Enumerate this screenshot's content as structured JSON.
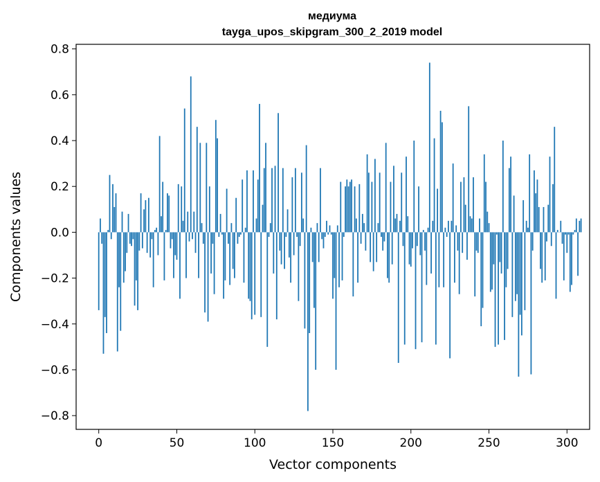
{
  "chart_data": {
    "type": "bar",
    "title_line1": "медиума",
    "title_line2": "tayga_upos_skipgram_300_2_2019 model",
    "xlabel": "Vector components",
    "ylabel": "Components values",
    "xlim": [
      -14.5,
      314.5
    ],
    "ylim": [
      -0.86,
      0.82
    ],
    "xticks": [
      0,
      50,
      100,
      150,
      200,
      250,
      300
    ],
    "xtick_labels": [
      "0",
      "50",
      "100",
      "150",
      "200",
      "250",
      "300"
    ],
    "yticks": [
      -0.8,
      -0.6,
      -0.4,
      -0.2,
      0.0,
      0.2,
      0.4,
      0.6,
      0.8
    ],
    "ytick_labels": [
      "−0.8",
      "−0.6",
      "−0.4",
      "−0.2",
      "0.0",
      "0.2",
      "0.4",
      "0.6",
      "0.8"
    ],
    "bar_color": "#1f77b4",
    "bar_width": 0.8,
    "values": [
      -0.34,
      0.06,
      -0.05,
      -0.53,
      -0.37,
      -0.44,
      0.01,
      0.25,
      -0.03,
      0.21,
      0.11,
      0.17,
      -0.52,
      -0.24,
      -0.43,
      0.09,
      -0.22,
      -0.17,
      -0.09,
      0.08,
      -0.05,
      -0.06,
      -0.03,
      -0.32,
      -0.21,
      -0.34,
      -0.08,
      0.17,
      -0.07,
      0.1,
      0.14,
      -0.09,
      0.15,
      -0.11,
      -0.03,
      -0.24,
      0.01,
      0.02,
      -0.1,
      0.42,
      0.07,
      0.22,
      -0.21,
      0.01,
      0.17,
      0.16,
      -0.07,
      -0.03,
      -0.2,
      -0.1,
      -0.12,
      0.21,
      -0.29,
      0.2,
      0.05,
      0.54,
      -0.2,
      0.09,
      -0.04,
      0.68,
      -0.03,
      0.09,
      -0.09,
      0.46,
      -0.2,
      0.39,
      0.04,
      -0.05,
      -0.35,
      0.39,
      -0.39,
      0.2,
      -0.18,
      -0.05,
      -0.27,
      0.49,
      0.41,
      -0.02,
      0.08,
      -0.01,
      -0.29,
      -0.21,
      0.19,
      -0.05,
      -0.23,
      0.04,
      -0.16,
      -0.2,
      0.15,
      -0.05,
      -0.02,
      -0.01,
      0.23,
      -0.22,
      0.02,
      0.27,
      -0.29,
      -0.3,
      -0.38,
      0.27,
      -0.36,
      0.06,
      0.23,
      0.56,
      -0.37,
      0.12,
      0.28,
      0.39,
      -0.5,
      -0.02,
      0.04,
      0.28,
      -0.18,
      0.29,
      -0.38,
      0.52,
      -0.08,
      -0.14,
      0.28,
      -0.16,
      -0.02,
      0.1,
      -0.11,
      -0.22,
      0.24,
      -0.1,
      0.28,
      -0.02,
      -0.3,
      -0.06,
      0.26,
      0.06,
      -0.42,
      0.38,
      -0.78,
      -0.44,
      0.02,
      -0.13,
      -0.33,
      -0.6,
      0.04,
      -0.13,
      0.28,
      -0.03,
      -0.07,
      -0.02,
      0.05,
      -0.01,
      0.03,
      -0.01,
      -0.29,
      -0.2,
      -0.6,
      0.03,
      -0.24,
      0.22,
      -0.21,
      -0.02,
      0.2,
      0.23,
      0.2,
      0.22,
      0.23,
      -0.28,
      0.2,
      0.06,
      -0.22,
      0.21,
      -0.05,
      0.08,
      0.04,
      -0.08,
      0.34,
      0.26,
      -0.13,
      0.22,
      -0.17,
      0.32,
      -0.13,
      0.04,
      0.26,
      -0.02,
      -0.08,
      -0.04,
      0.39,
      -0.2,
      -0.22,
      0.22,
      -0.14,
      0.29,
      0.06,
      0.08,
      -0.57,
      0.05,
      0.26,
      -0.06,
      -0.49,
      0.33,
      0.07,
      -0.14,
      -0.15,
      -0.07,
      0.4,
      -0.51,
      -0.06,
      0.2,
      -0.1,
      -0.48,
      0.01,
      -0.08,
      -0.23,
      0.02,
      0.74,
      -0.18,
      0.05,
      0.41,
      -0.49,
      0.19,
      -0.24,
      0.53,
      0.48,
      -0.24,
      0.02,
      -0.02,
      0.05,
      -0.55,
      0.05,
      0.3,
      -0.22,
      0.03,
      -0.08,
      -0.27,
      0.22,
      -0.09,
      0.24,
      0.12,
      -0.12,
      0.55,
      0.07,
      0.06,
      0.24,
      -0.28,
      -0.08,
      -0.09,
      0.06,
      -0.41,
      -0.33,
      0.34,
      0.22,
      0.09,
      0.04,
      -0.26,
      -0.25,
      -0.14,
      -0.5,
      -0.01,
      -0.49,
      -0.13,
      -0.18,
      0.4,
      -0.47,
      -0.24,
      -0.16,
      0.28,
      0.33,
      -0.37,
      0.16,
      -0.3,
      -0.27,
      -0.63,
      -0.36,
      -0.45,
      0.14,
      -0.34,
      0.05,
      0.02,
      0.34,
      -0.62,
      -0.08,
      0.27,
      0.17,
      0.23,
      0.11,
      -0.16,
      -0.22,
      0.11,
      -0.21,
      -0.04,
      0.12,
      0.33,
      -0.06,
      0.21,
      0.46,
      -0.29,
      0.01,
      0.0,
      0.05,
      -0.05,
      -0.21,
      -0.01,
      -0.09,
      -0.01,
      -0.26,
      -0.23,
      -0.01,
      0.01,
      0.06,
      -0.19,
      0.05,
      0.06
    ]
  }
}
